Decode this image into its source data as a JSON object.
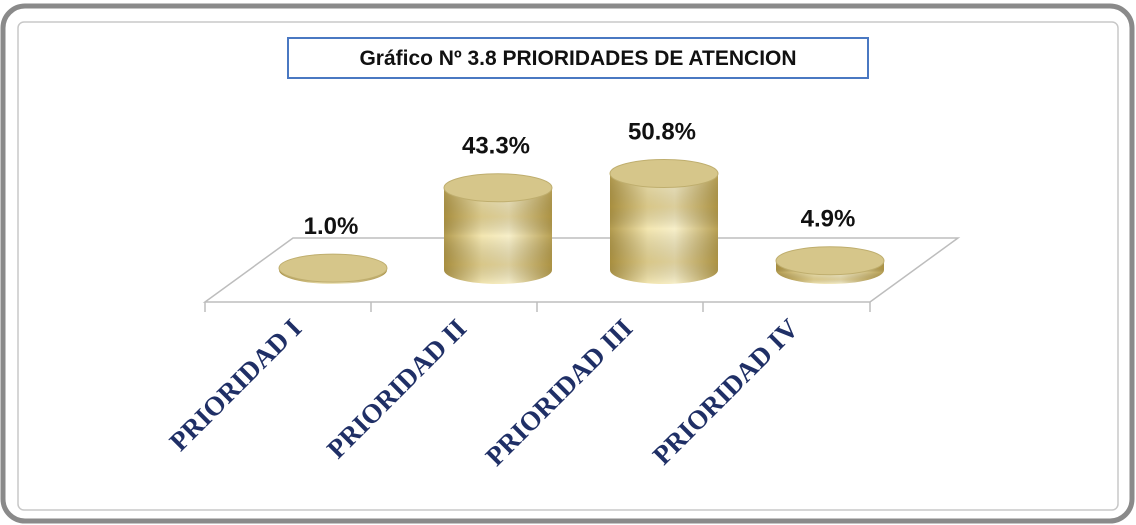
{
  "chart_data": {
    "type": "bar",
    "title": "Gráfico Nº 3.8 PRIORIDADES DE ATENCION",
    "categories": [
      "PRIORIDAD I",
      "PRIORIDAD II",
      "PRIORIDAD III",
      "PRIORIDAD IV"
    ],
    "values": [
      1.0,
      43.3,
      50.8,
      4.9
    ],
    "value_labels": [
      "1.0%",
      "43.3%",
      "50.8%",
      "4.9%"
    ],
    "color": "#d6c68a"
  }
}
